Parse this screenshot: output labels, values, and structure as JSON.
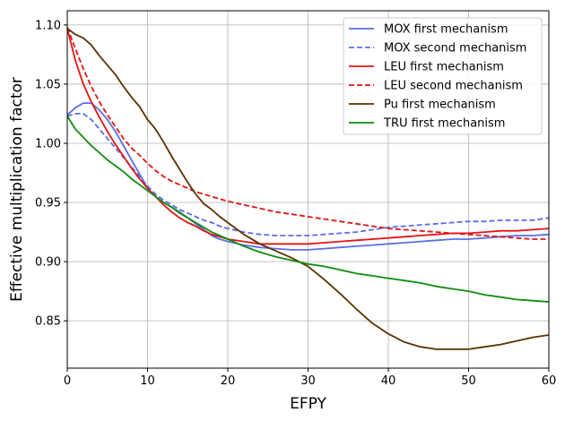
{
  "chart_data": {
    "type": "line",
    "title": "",
    "xlabel": "EFPY",
    "ylabel": "Effective multiplication factor",
    "xlim": [
      0,
      60
    ],
    "ylim": [
      0.81,
      1.112
    ],
    "xticks": [
      0,
      10,
      20,
      30,
      40,
      50,
      60
    ],
    "yticks": [
      0.85,
      0.9,
      0.95,
      1.0,
      1.05,
      1.1
    ],
    "xtick_labels": [
      "0",
      "10",
      "20",
      "30",
      "40",
      "50",
      "60"
    ],
    "ytick_labels": [
      "0.85",
      "0.90",
      "0.95",
      "1.00",
      "1.05",
      "1.10"
    ],
    "grid": true,
    "legend_position": "top-right",
    "series": [
      {
        "name": "MOX first mechanism",
        "color": "#5a6fe6",
        "dash": "solid",
        "x": [
          0,
          1,
          2,
          3,
          4,
          5,
          6,
          7,
          8,
          9,
          10,
          11,
          12,
          13,
          14,
          15,
          16,
          17,
          18,
          19,
          20,
          22,
          24,
          26,
          28,
          30,
          32,
          34,
          36,
          38,
          40,
          42,
          44,
          46,
          48,
          50,
          52,
          54,
          56,
          58,
          60
        ],
        "y": [
          1.024,
          1.03,
          1.034,
          1.034,
          1.028,
          1.02,
          1.01,
          0.998,
          0.986,
          0.974,
          0.962,
          0.955,
          0.95,
          0.946,
          0.942,
          0.937,
          0.932,
          0.927,
          0.922,
          0.919,
          0.917,
          0.914,
          0.912,
          0.911,
          0.91,
          0.91,
          0.911,
          0.912,
          0.913,
          0.914,
          0.915,
          0.916,
          0.917,
          0.918,
          0.919,
          0.919,
          0.92,
          0.921,
          0.922,
          0.922,
          0.923
        ]
      },
      {
        "name": "MOX second mechanism",
        "color": "#5a6fe6",
        "dash": "dashed",
        "x": [
          0,
          1,
          2,
          3,
          4,
          5,
          6,
          7,
          8,
          9,
          10,
          11,
          12,
          13,
          14,
          15,
          16,
          17,
          18,
          19,
          20,
          22,
          24,
          26,
          28,
          30,
          32,
          34,
          36,
          38,
          40,
          42,
          44,
          46,
          48,
          50,
          52,
          54,
          56,
          58,
          60
        ],
        "y": [
          1.023,
          1.025,
          1.025,
          1.02,
          1.012,
          1.004,
          0.996,
          0.988,
          0.98,
          0.972,
          0.964,
          0.957,
          0.952,
          0.948,
          0.944,
          0.941,
          0.938,
          0.935,
          0.933,
          0.93,
          0.928,
          0.925,
          0.923,
          0.922,
          0.922,
          0.922,
          0.923,
          0.924,
          0.925,
          0.927,
          0.929,
          0.93,
          0.931,
          0.932,
          0.933,
          0.934,
          0.934,
          0.935,
          0.935,
          0.935,
          0.937
        ]
      },
      {
        "name": "LEU first mechanism",
        "color": "#e21414",
        "dash": "solid",
        "x": [
          0,
          1,
          2,
          3,
          4,
          5,
          6,
          7,
          8,
          9,
          10,
          11,
          12,
          13,
          14,
          15,
          16,
          17,
          18,
          19,
          20,
          22,
          24,
          26,
          28,
          30,
          32,
          34,
          36,
          38,
          40,
          42,
          44,
          46,
          48,
          50,
          52,
          54,
          56,
          58,
          60
        ],
        "y": [
          1.097,
          1.07,
          1.05,
          1.035,
          1.022,
          1.01,
          0.999,
          0.989,
          0.979,
          0.97,
          0.962,
          0.955,
          0.948,
          0.942,
          0.937,
          0.933,
          0.93,
          0.926,
          0.923,
          0.921,
          0.919,
          0.917,
          0.915,
          0.915,
          0.915,
          0.915,
          0.916,
          0.917,
          0.918,
          0.919,
          0.92,
          0.921,
          0.922,
          0.923,
          0.924,
          0.924,
          0.925,
          0.926,
          0.926,
          0.927,
          0.928
        ]
      },
      {
        "name": "LEU second mechanism",
        "color": "#e21414",
        "dash": "dashed",
        "x": [
          0,
          1,
          2,
          3,
          4,
          5,
          6,
          7,
          8,
          9,
          10,
          11,
          12,
          13,
          14,
          15,
          16,
          17,
          18,
          19,
          20,
          22,
          24,
          26,
          28,
          30,
          32,
          34,
          36,
          38,
          40,
          42,
          44,
          46,
          48,
          50,
          52,
          54,
          56,
          58,
          60
        ],
        "y": [
          1.098,
          1.08,
          1.063,
          1.048,
          1.035,
          1.024,
          1.014,
          1.004,
          0.996,
          0.99,
          0.983,
          0.977,
          0.972,
          0.968,
          0.965,
          0.962,
          0.959,
          0.957,
          0.955,
          0.953,
          0.951,
          0.948,
          0.945,
          0.942,
          0.94,
          0.938,
          0.936,
          0.934,
          0.932,
          0.93,
          0.928,
          0.927,
          0.926,
          0.925,
          0.924,
          0.923,
          0.922,
          0.921,
          0.92,
          0.919,
          0.919
        ]
      },
      {
        "name": "Pu first mechanism",
        "color": "#5b3200",
        "dash": "solid",
        "x": [
          0,
          1,
          2,
          3,
          4,
          5,
          6,
          7,
          8,
          9,
          10,
          11,
          12,
          13,
          14,
          15,
          16,
          17,
          18,
          19,
          20,
          22,
          24,
          26,
          28,
          30,
          32,
          34,
          36,
          38,
          40,
          42,
          44,
          46,
          48,
          50,
          52,
          54,
          56,
          58,
          60
        ],
        "y": [
          1.097,
          1.092,
          1.089,
          1.083,
          1.074,
          1.066,
          1.058,
          1.048,
          1.039,
          1.031,
          1.02,
          1.012,
          1.001,
          0.989,
          0.978,
          0.967,
          0.957,
          0.949,
          0.944,
          0.938,
          0.933,
          0.923,
          0.915,
          0.909,
          0.903,
          0.896,
          0.885,
          0.873,
          0.86,
          0.848,
          0.839,
          0.832,
          0.828,
          0.826,
          0.826,
          0.826,
          0.828,
          0.83,
          0.833,
          0.836,
          0.838
        ]
      },
      {
        "name": "TRU first mechanism",
        "color": "#108c10",
        "dash": "solid",
        "x": [
          0,
          1,
          2,
          3,
          4,
          5,
          6,
          7,
          8,
          9,
          10,
          11,
          12,
          13,
          14,
          15,
          16,
          17,
          18,
          19,
          20,
          22,
          24,
          26,
          28,
          30,
          32,
          34,
          36,
          38,
          40,
          42,
          44,
          46,
          48,
          50,
          52,
          54,
          56,
          58,
          60
        ],
        "y": [
          1.023,
          1.012,
          1.005,
          0.998,
          0.992,
          0.986,
          0.981,
          0.976,
          0.97,
          0.965,
          0.96,
          0.955,
          0.95,
          0.946,
          0.941,
          0.937,
          0.933,
          0.929,
          0.925,
          0.922,
          0.919,
          0.913,
          0.908,
          0.904,
          0.901,
          0.898,
          0.896,
          0.893,
          0.89,
          0.888,
          0.886,
          0.884,
          0.882,
          0.879,
          0.877,
          0.875,
          0.872,
          0.87,
          0.868,
          0.867,
          0.866
        ]
      }
    ]
  }
}
